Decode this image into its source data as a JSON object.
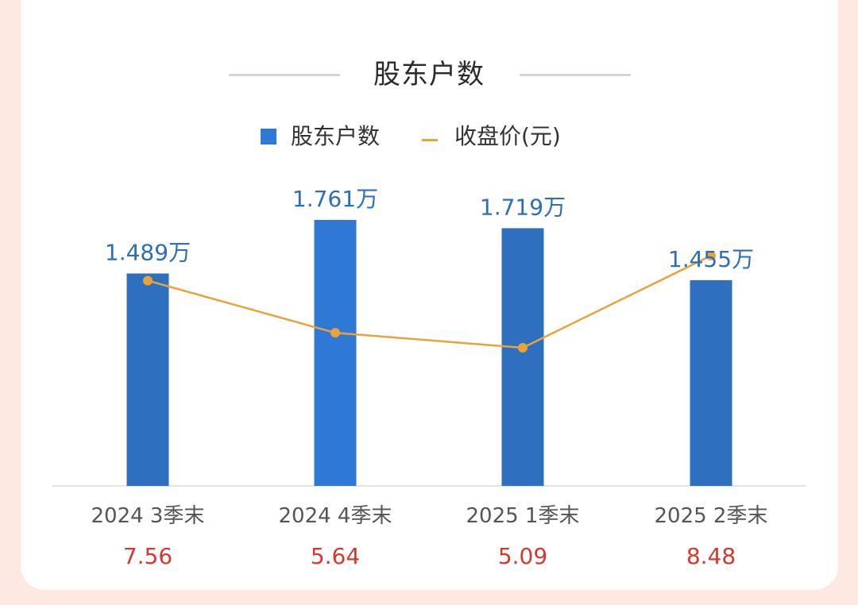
{
  "title": "股东户数",
  "legend": {
    "bar_label": "股东户数",
    "line_label": "收盘价(元)"
  },
  "colors": {
    "bar": "#2f78d4",
    "line": "#e9a33a",
    "bar_label": "#2d6fb7",
    "price": "#d33a2f"
  },
  "chart_data": {
    "type": "bar",
    "categories": [
      "2024 3季末",
      "2024 4季末",
      "2025 1季末",
      "2025 2季末"
    ],
    "series": [
      {
        "name": "股东户数",
        "type": "bar",
        "values": [
          1.489,
          1.761,
          1.719,
          1.455
        ],
        "labels": [
          "1.489万",
          "1.761万",
          "1.719万",
          "1.455万"
        ]
      },
      {
        "name": "收盘价(元)",
        "type": "line",
        "values": [
          7.56,
          5.64,
          5.09,
          8.48
        ],
        "labels": [
          "7.56",
          "5.64",
          "5.09",
          "8.48"
        ]
      }
    ],
    "title": "股东户数",
    "legend_position": "top-center"
  }
}
